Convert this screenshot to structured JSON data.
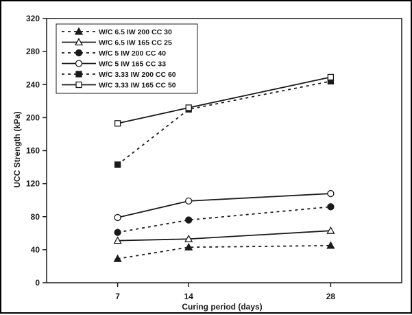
{
  "chart_data": {
    "type": "line",
    "xlabel": "Curing period (days)",
    "ylabel": "UCC Strength (kPa)",
    "categories": [
      "7",
      "14",
      "28"
    ],
    "x": [
      7,
      14,
      28
    ],
    "xlim": [
      0,
      35
    ],
    "ylim": [
      0,
      320
    ],
    "yticks": [
      0,
      40,
      80,
      120,
      160,
      200,
      240,
      280,
      320
    ],
    "xtick_labels": [
      "7",
      "14",
      "28"
    ],
    "ytick_labels": [
      "0",
      "40",
      "80",
      "120",
      "160",
      "200",
      "240",
      "280",
      "320"
    ],
    "grid": false,
    "legend_position": "top-left",
    "series": [
      {
        "name": "W/C 6.5 IW 200 CC 30",
        "values": [
          29,
          43,
          45
        ],
        "line": "dashed",
        "marker": "triangle",
        "filled": true,
        "color": "#1a1a1a"
      },
      {
        "name": "W/C 6.5 IW 165 CC 25",
        "values": [
          51,
          53,
          63
        ],
        "line": "solid",
        "marker": "triangle",
        "filled": false,
        "color": "#1a1a1a"
      },
      {
        "name": "W/C 5 IW 200 CC 40",
        "values": [
          61,
          76,
          92
        ],
        "line": "dashed",
        "marker": "circle",
        "filled": true,
        "color": "#1a1a1a"
      },
      {
        "name": "W/C 5 IW 165 CC 33",
        "values": [
          79,
          99,
          108
        ],
        "line": "solid",
        "marker": "circle",
        "filled": false,
        "color": "#1a1a1a"
      },
      {
        "name": "W/C 3.33 IW 200 CC 60",
        "values": [
          143,
          210,
          244
        ],
        "line": "dashed",
        "marker": "square",
        "filled": true,
        "color": "#1a1a1a"
      },
      {
        "name": "W/C 3.33 IW 165 CC 50",
        "values": [
          193,
          212,
          249
        ],
        "line": "solid",
        "marker": "square",
        "filled": false,
        "color": "#1a1a1a"
      }
    ]
  }
}
